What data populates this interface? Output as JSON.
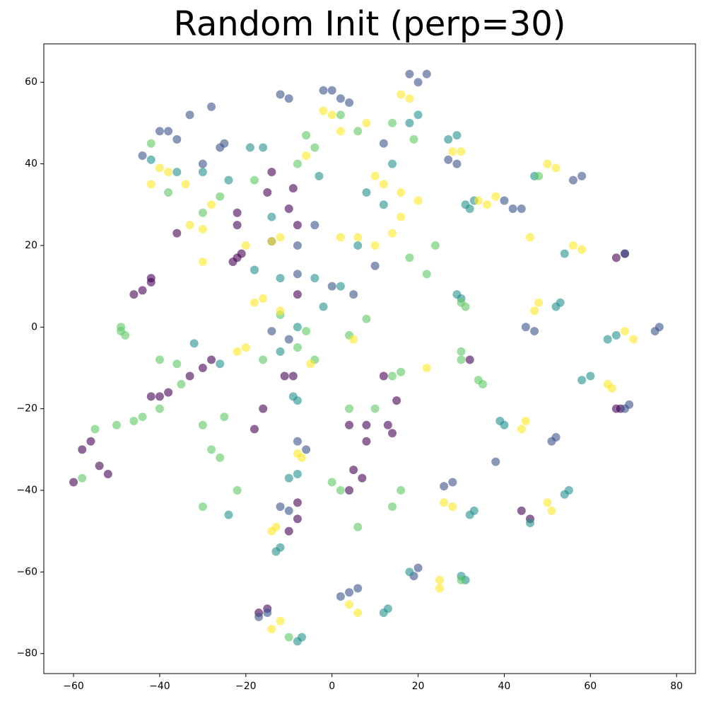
{
  "chart_data": {
    "type": "scatter",
    "title": "Random Init (perp=30)",
    "xlim": [
      -66.9,
      84.4
    ],
    "ylim": [
      -84.9,
      69.4
    ],
    "xticks": [
      {
        "value": -60,
        "label": "−60"
      },
      {
        "value": -40,
        "label": "−40"
      },
      {
        "value": -20,
        "label": "−20"
      },
      0,
      20,
      40,
      60,
      80
    ],
    "yticks": [
      {
        "value": -80,
        "label": "−80"
      },
      {
        "value": -60,
        "label": "−60"
      },
      {
        "value": -40,
        "label": "−40"
      },
      {
        "value": -20,
        "label": "−20"
      },
      0,
      20,
      40,
      60
    ],
    "series": [
      {
        "color": "#440154",
        "x": [
          -46,
          -44,
          -42,
          -42,
          -22,
          -23,
          -21,
          -22,
          -22,
          -15,
          -9,
          -14,
          -10,
          -8,
          -8,
          -9,
          -11,
          -42,
          -40,
          -38,
          -33,
          -30,
          -28,
          -16,
          -18,
          -58,
          -56,
          -60,
          -54,
          -52,
          -8,
          -8,
          -17,
          -15,
          4,
          5,
          7,
          8,
          8,
          12,
          15,
          14,
          44,
          46,
          66,
          67,
          66,
          68,
          32,
          13,
          4,
          -10,
          -36
        ],
        "values": [
          8,
          9,
          11,
          12,
          17,
          16,
          18,
          28,
          25,
          33,
          34,
          38,
          29,
          25,
          8,
          -12,
          -12,
          -17,
          -17,
          -16,
          -12,
          -10,
          -8,
          -20,
          -25,
          -30,
          -28,
          -38,
          -34,
          -36,
          -47,
          -43,
          -70,
          -69,
          -40,
          -35,
          -37,
          -28,
          -24,
          -12,
          -18,
          -26,
          -45,
          -47,
          -20,
          -20,
          17,
          18,
          -8,
          -24,
          -24,
          -50,
          23
        ]
      },
      {
        "color": "#3b528b",
        "x": [
          -40,
          -38,
          -44,
          -36,
          -33,
          -28,
          -26,
          -12,
          -10,
          -2,
          0,
          2,
          4,
          12,
          18,
          20,
          22,
          40,
          42,
          44,
          38,
          45,
          47,
          58,
          56,
          68,
          76,
          75,
          69,
          68,
          51,
          52,
          26,
          28,
          19,
          20,
          4,
          6,
          2,
          -15,
          -17,
          -10,
          -12,
          -8,
          -6,
          -14,
          -10,
          -8,
          -4,
          0,
          5,
          10,
          27,
          29,
          -30,
          -25,
          -14,
          -8
        ],
        "values": [
          48,
          48,
          42,
          46,
          52,
          54,
          44,
          57,
          56,
          58,
          58,
          56,
          55,
          45,
          62,
          60,
          62,
          31,
          29,
          29,
          -33,
          0,
          -1,
          37,
          36,
          18,
          0,
          -1,
          -19,
          -20,
          -28,
          -27,
          -39,
          -38,
          -61,
          -59,
          -65,
          -64,
          -66,
          -70,
          -71,
          -45,
          -44,
          -28,
          -30,
          -1,
          -3,
          20,
          25,
          10,
          8,
          15,
          41,
          40,
          40,
          45,
          21,
          13
        ]
      },
      {
        "color": "#21918c",
        "x": [
          -42,
          -36,
          -30,
          -24,
          -14,
          -18,
          -12,
          -4,
          -2,
          2,
          6,
          8,
          14,
          12,
          18,
          20,
          27,
          29,
          31,
          33,
          32,
          47,
          30,
          29,
          54,
          53,
          52,
          64,
          66,
          60,
          58,
          40,
          39,
          55,
          54,
          33,
          32,
          30,
          31,
          12,
          13,
          -9,
          -8,
          -8,
          -10,
          -13,
          -12,
          -8,
          -7,
          -3,
          -19,
          -16,
          -8,
          -12,
          -26,
          -32,
          -24,
          18,
          46
        ],
        "values": [
          41,
          38,
          38,
          36,
          27,
          14,
          12,
          12,
          5,
          10,
          20,
          33,
          40,
          30,
          50,
          52,
          46,
          47,
          30,
          31,
          29,
          37,
          7,
          8,
          18,
          6,
          5,
          -3,
          -2,
          -12,
          -13,
          -24,
          -23,
          -40,
          -41,
          -45,
          -46,
          -61,
          -62,
          -70,
          -69,
          -17,
          -18,
          -36,
          -37,
          -55,
          -54,
          -77,
          -76,
          37,
          44,
          44,
          0,
          -6,
          -9,
          -4,
          -46,
          -60,
          -48
        ]
      },
      {
        "color": "#5ec962",
        "x": [
          -49,
          -48,
          -49,
          -40,
          -36,
          -35,
          -25,
          -28,
          -26,
          -22,
          -30,
          -44,
          -46,
          -50,
          -55,
          -58,
          -30,
          -38,
          -26,
          -18,
          -8,
          -6,
          -4,
          2,
          6,
          14,
          19,
          30,
          31,
          48,
          30,
          34,
          35,
          30,
          14,
          16,
          6,
          2,
          0,
          4,
          10,
          14,
          16,
          -8,
          -4,
          -16,
          -12,
          -6,
          4,
          8,
          18,
          22,
          24,
          -40,
          -30,
          -42,
          -10,
          30
        ],
        "values": [
          -1,
          -2,
          0,
          -8,
          -9,
          -14,
          -22,
          -30,
          -32,
          -40,
          -44,
          -22,
          -23,
          -24,
          -25,
          -37,
          28,
          33,
          32,
          36,
          40,
          47,
          44,
          52,
          48,
          50,
          46,
          6,
          5,
          37,
          -6,
          -13,
          -14,
          -8,
          -44,
          -40,
          -49,
          -40,
          -38,
          -20,
          -20,
          -12,
          -11,
          -5,
          -8,
          -8,
          3,
          -1,
          -2,
          2,
          17,
          13,
          20,
          -20,
          -24,
          45,
          -76,
          -62
        ]
      },
      {
        "color": "#fde725",
        "x": [
          -40,
          -38,
          -42,
          -34,
          -33,
          -30,
          -28,
          -12,
          -14,
          -20,
          -16,
          -18,
          -12,
          2,
          6,
          10,
          14,
          16,
          10,
          12,
          16,
          20,
          -2,
          0,
          2,
          -6,
          8,
          16,
          18,
          28,
          30,
          36,
          38,
          34,
          46,
          50,
          52,
          48,
          47,
          56,
          58,
          68,
          70,
          65,
          64,
          45,
          44,
          50,
          51,
          26,
          28,
          25,
          25,
          4,
          6,
          -12,
          -14,
          -14,
          -13,
          -7,
          -8,
          -5,
          5,
          22,
          -22,
          -20,
          -30
        ],
        "values": [
          39,
          38,
          35,
          35,
          25,
          24,
          30,
          22,
          21,
          20,
          7,
          6,
          4,
          22,
          22,
          20,
          23,
          27,
          37,
          35,
          33,
          31,
          53,
          52,
          48,
          42,
          50,
          57,
          56,
          43,
          43,
          30,
          32,
          31,
          22,
          40,
          39,
          6,
          4,
          20,
          19,
          -1,
          -3,
          -15,
          -14,
          -23,
          -25,
          -43,
          -45,
          -43,
          -44,
          -62,
          -64,
          -68,
          -70,
          -72,
          -74,
          -50,
          -49,
          -32,
          -31,
          -9,
          -3,
          -10,
          -6,
          -5,
          16
        ]
      }
    ]
  }
}
